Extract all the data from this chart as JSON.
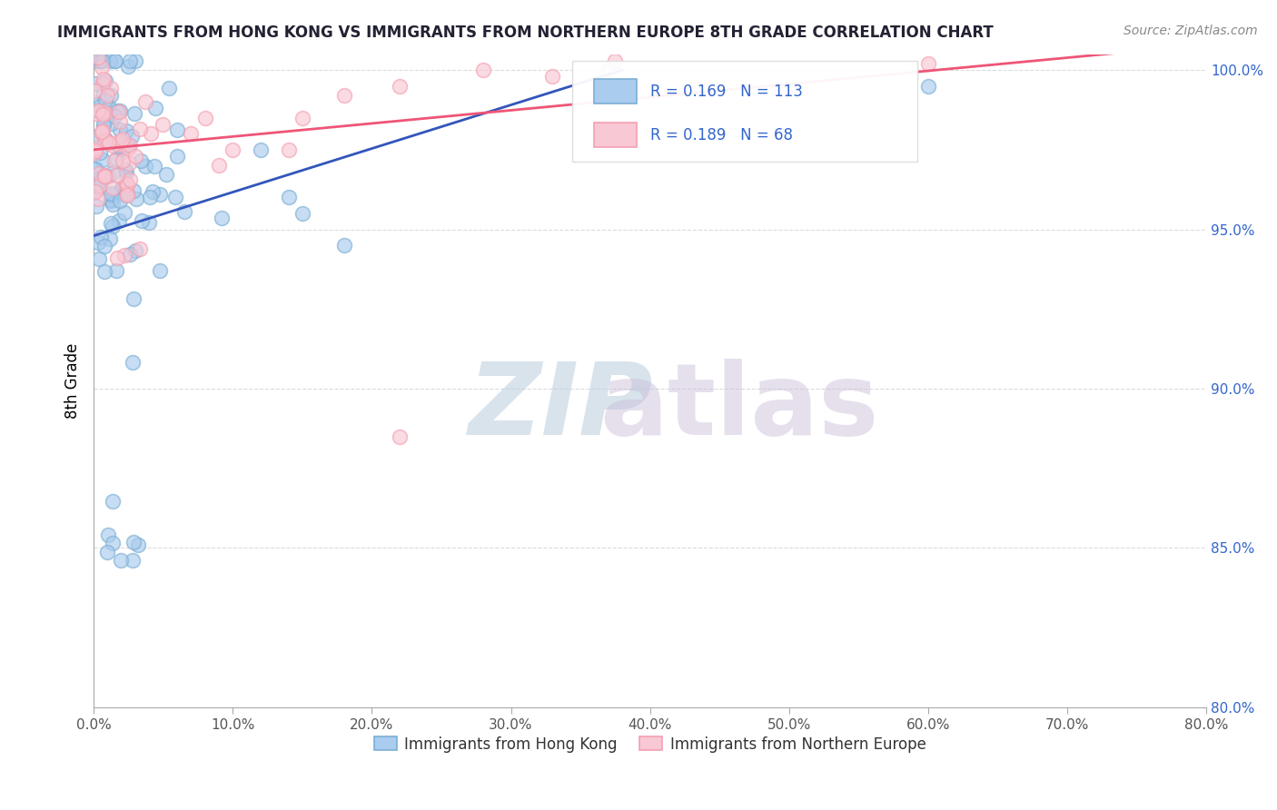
{
  "title": "IMMIGRANTS FROM HONG KONG VS IMMIGRANTS FROM NORTHERN EUROPE 8TH GRADE CORRELATION CHART",
  "source": "Source: ZipAtlas.com",
  "ylabel": "8th Grade",
  "x_min": 0.0,
  "x_max": 80.0,
  "y_min": 80.0,
  "y_max": 100.5,
  "x_ticks": [
    0.0,
    10.0,
    20.0,
    30.0,
    40.0,
    50.0,
    60.0,
    70.0,
    80.0
  ],
  "y_ticks": [
    80.0,
    85.0,
    90.0,
    95.0,
    100.0
  ],
  "grid_color": "#cccccc",
  "blue_color": "#7bafd4",
  "pink_color": "#f4a0b0",
  "blue_label": "Immigrants from Hong Kong",
  "pink_label": "Immigrants from Northern Europe",
  "R_blue": 0.169,
  "N_blue": 113,
  "R_pink": 0.189,
  "N_pink": 68,
  "blue_trend_x0": 0.0,
  "blue_trend_y0": 94.8,
  "blue_trend_x1": 38.0,
  "blue_trend_y1": 100.0,
  "pink_trend_x0": 0.0,
  "pink_trend_y0": 97.5,
  "pink_trend_x1": 80.0,
  "pink_trend_y1": 100.8,
  "watermark_zip_color": "#c8d8ec",
  "watermark_atlas_color": "#d4c8e4",
  "legend_edge_color": "#dddddd",
  "title_fontsize": 12,
  "source_fontsize": 10,
  "axis_label_color": "#3366cc",
  "axis_tick_color": "#555555"
}
